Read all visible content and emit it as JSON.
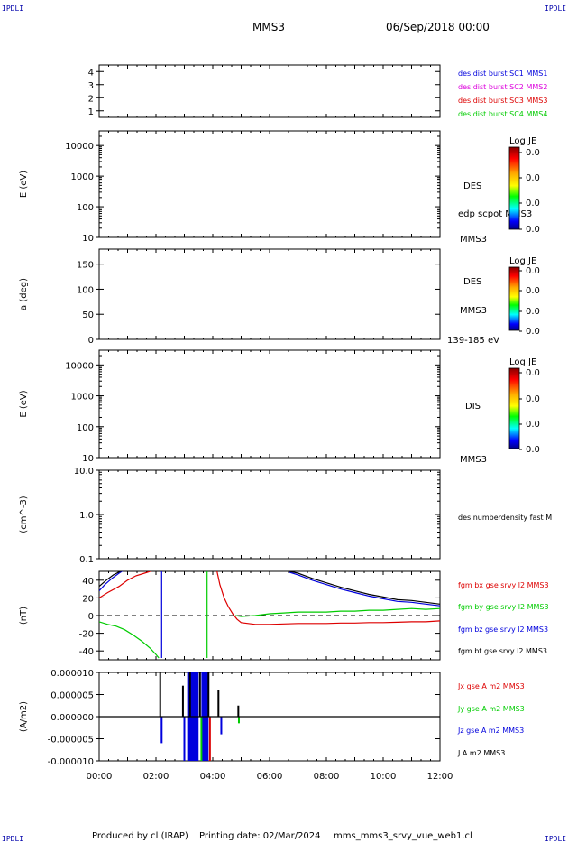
{
  "header": {
    "corner_tl": "IPDLI",
    "corner_tr": "IPDLI",
    "corner_bl": "IPDLI",
    "corner_br": "IPDLI",
    "spacecraft": "MMS3",
    "date": "06/Sep/2018 00:00"
  },
  "footer": {
    "produced": "Produced by cl (IRAP)",
    "printing": "Printing date: 02/Mar/2024",
    "file": "mms_mms3_srvy_vue_web1.cl"
  },
  "colors": {
    "blue": "#0000dd",
    "magenta": "#dd00dd",
    "red": "#dd0000",
    "green": "#00cc00",
    "black": "#000000"
  },
  "chart_data": [
    {
      "type": "line",
      "panel": "burst",
      "ylabel": "",
      "ylim": [
        0.5,
        4.5
      ],
      "yticks": [
        1,
        2,
        3,
        4
      ],
      "tick_labels": [
        "1",
        "2",
        "3",
        "4"
      ],
      "legend": [
        {
          "label": "des dist burst SC1 MMS1",
          "color": "#0000dd"
        },
        {
          "label": "des dist burst SC2 MMS2",
          "color": "#dd00dd"
        },
        {
          "label": "des dist burst SC3 MMS3",
          "color": "#dd0000"
        },
        {
          "label": "des dist burst SC4 MMS4",
          "color": "#00cc00"
        }
      ],
      "series": []
    },
    {
      "type": "heatmap",
      "panel": "des-energy",
      "ylabel": "E (eV)",
      "yscale": "log",
      "ylim": [
        10,
        30000
      ],
      "yticks": [
        10,
        100,
        1000,
        10000
      ],
      "tick_labels": [
        "10",
        "100",
        "1000",
        "10000"
      ],
      "side_labels": [
        "DES",
        "edp scpot MMS3",
        "MMS3"
      ],
      "colorbar": {
        "title": "Log JE",
        "ticks": [
          "0.0",
          "0.0",
          "0.0",
          "0.0"
        ]
      }
    },
    {
      "type": "heatmap",
      "panel": "des-pitch",
      "ylabel": "a (deg)",
      "ylim": [
        0,
        180
      ],
      "yticks": [
        0,
        50,
        100,
        150
      ],
      "tick_labels": [
        "0",
        "50",
        "100",
        "150"
      ],
      "side_labels": [
        "DES",
        "MMS3",
        "139-185 eV"
      ],
      "colorbar": {
        "title": "Log JE",
        "ticks": [
          "0.0",
          "0.0",
          "0.0",
          "0.0"
        ]
      }
    },
    {
      "type": "heatmap",
      "panel": "dis-energy",
      "ylabel": "E (eV)",
      "yscale": "log",
      "ylim": [
        10,
        30000
      ],
      "yticks": [
        10,
        100,
        1000,
        10000
      ],
      "tick_labels": [
        "10",
        "100",
        "1000",
        "10000"
      ],
      "side_labels": [
        "DIS",
        "MMS3"
      ],
      "colorbar": {
        "title": "Log JE",
        "ticks": [
          "0.0",
          "0.0",
          "0.0",
          "0.0"
        ]
      }
    },
    {
      "type": "line",
      "panel": "density",
      "ylabel": "(cm^-3)",
      "yscale": "log",
      "ylim": [
        0.1,
        10
      ],
      "yticks": [
        0.1,
        1,
        10
      ],
      "tick_labels": [
        "0.1",
        "1.0",
        "10.0"
      ],
      "legend": [
        {
          "label": "des numberdensity fast M",
          "color": "#000000"
        }
      ],
      "series": []
    },
    {
      "type": "line",
      "panel": "magnetic-field",
      "ylabel": "(nT)",
      "ylim": [
        -50,
        50
      ],
      "yticks": [
        -40,
        -20,
        0,
        20,
        40
      ],
      "tick_labels": [
        "-40",
        "-20",
        "0",
        "20",
        "40"
      ],
      "legend": [
        {
          "label": "fgm bx gse srvy l2 MMS3",
          "color": "#dd0000"
        },
        {
          "label": "fgm by gse srvy l2 MMS3",
          "color": "#00cc00"
        },
        {
          "label": "fgm bz gse srvy l2 MMS3",
          "color": "#0000dd"
        },
        {
          "label": "fgm bt gse srvy l2 MMS3",
          "color": "#000000"
        }
      ],
      "series": [
        {
          "color": "#dd0000",
          "x": [
            0,
            0.3,
            0.7,
            1.0,
            1.3,
            1.6,
            1.9
          ],
          "y": [
            20,
            26,
            33,
            40,
            45,
            48,
            51
          ]
        },
        {
          "color": "#dd0000",
          "x": [
            4.15,
            4.25,
            4.4,
            4.55,
            4.7,
            4.85,
            5.0,
            5.5,
            6.0,
            6.5,
            7.0,
            7.5,
            8.0,
            8.5,
            9.0,
            9.5,
            10.0,
            10.5,
            11.0,
            11.5,
            12.0
          ],
          "y": [
            50,
            35,
            20,
            10,
            2,
            -4,
            -8,
            -10,
            -10,
            -9.5,
            -9,
            -9,
            -9,
            -8.5,
            -8.5,
            -8,
            -8,
            -7.5,
            -7,
            -7,
            -6
          ]
        },
        {
          "color": "#00cc00",
          "x": [
            0,
            0.3,
            0.6,
            0.9,
            1.2,
            1.5,
            1.8,
            2.0,
            2.1
          ],
          "y": [
            -7,
            -10,
            -12,
            -16,
            -22,
            -29,
            -37,
            -44,
            -48
          ]
        },
        {
          "color": "#00cc00",
          "x": [
            3.8,
            3.8,
            3.82
          ],
          "y": [
            -48,
            50,
            52
          ]
        },
        {
          "color": "#00cc00",
          "x": [
            4.8,
            5.0,
            5.5,
            6.0,
            6.5,
            7.0,
            7.5,
            8.0,
            8.5,
            9.0,
            9.5,
            10.0,
            10.5,
            11.0,
            11.5,
            12.0
          ],
          "y": [
            0,
            -1,
            0,
            2,
            3,
            4,
            4,
            4,
            5,
            5,
            6,
            6,
            7,
            8,
            7,
            8
          ]
        },
        {
          "color": "#0000dd",
          "x": [
            0,
            0.2,
            0.45,
            0.7,
            0.85
          ],
          "y": [
            28,
            35,
            42,
            48,
            51
          ]
        },
        {
          "color": "#0000dd",
          "x": [
            2.2,
            2.2
          ],
          "y": [
            -48,
            50
          ]
        },
        {
          "color": "#0000dd",
          "x": [
            6.7,
            7.0,
            7.5,
            8.0,
            8.5,
            9.0,
            9.5,
            10.0,
            10.5,
            11.0,
            11.5,
            12.0
          ],
          "y": [
            49,
            46,
            40,
            35,
            30,
            26,
            22,
            19,
            16,
            15,
            13,
            11
          ]
        },
        {
          "color": "#000000",
          "x": [
            0,
            0.25,
            0.5,
            0.75,
            1.0
          ],
          "y": [
            33,
            40,
            46,
            50,
            53
          ]
        },
        {
          "color": "#000000",
          "x": [
            6.7,
            7.0,
            7.5,
            8.0,
            8.5,
            9.0,
            9.5,
            10.0,
            10.5,
            11.0,
            11.5,
            12.0
          ],
          "y": [
            50,
            48,
            42,
            37,
            32,
            28,
            24,
            21,
            18,
            17,
            15,
            13
          ]
        }
      ],
      "reference_line": 0
    },
    {
      "type": "line",
      "panel": "current-density",
      "ylabel": "(A/m2)",
      "ylim": [
        -1e-05,
        1e-05
      ],
      "yticks": [
        -1e-05,
        -5e-06,
        0,
        5e-06,
        1e-05
      ],
      "tick_labels": [
        "-0.000010",
        "-0.000005",
        "0.000000",
        "0.000005",
        "0.000010"
      ],
      "xlabel": "",
      "xlim": [
        0,
        12
      ],
      "xticks": [
        0,
        2,
        4,
        6,
        8,
        10,
        12
      ],
      "xtick_labels": [
        "00:00",
        "02:00",
        "04:00",
        "06:00",
        "08:00",
        "10:00",
        "12:00"
      ],
      "legend": [
        {
          "label": "Jx gse A m2 MMS3",
          "color": "#dd0000"
        },
        {
          "label": "Jy gse A m2 MMS3",
          "color": "#00cc00"
        },
        {
          "label": "Jz gse A m2 MMS3",
          "color": "#0000dd"
        },
        {
          "label": "J A m2 MMS3",
          "color": "#000000"
        }
      ],
      "spikes": [
        {
          "color": "#000000",
          "x": 2.15,
          "y": 1e-05
        },
        {
          "color": "#0000dd",
          "x": 2.2,
          "y": -6e-06
        },
        {
          "color": "#000000",
          "x": 2.95,
          "y": 7e-06
        },
        {
          "color": "#0000dd",
          "x": 3.0,
          "y": -1e-05
        },
        {
          "color": "#000000",
          "x": 3.2,
          "y": 1e-05
        },
        {
          "color": "#000000",
          "x": 3.55,
          "y": 1e-05
        },
        {
          "color": "#00cc00",
          "x": 3.6,
          "y": -1e-05
        },
        {
          "color": "#000000",
          "x": 3.85,
          "y": 1e-05
        },
        {
          "color": "#dd0000",
          "x": 3.9,
          "y": -1e-05
        },
        {
          "color": "#000000",
          "x": 4.2,
          "y": 6e-06
        },
        {
          "color": "#0000dd",
          "x": 4.3,
          "y": -4e-06
        },
        {
          "color": "#000000",
          "x": 4.9,
          "y": 2.5e-06
        },
        {
          "color": "#00cc00",
          "x": 4.92,
          "y": -1.5e-06
        }
      ],
      "bands": [
        {
          "color": "#0000dd",
          "x0": 3.1,
          "x1": 3.5,
          "y0": -1e-05,
          "y1": 1e-05
        },
        {
          "color": "#0000dd",
          "x0": 3.6,
          "x1": 3.85,
          "y0": -1e-05,
          "y1": 1e-05
        }
      ]
    }
  ]
}
